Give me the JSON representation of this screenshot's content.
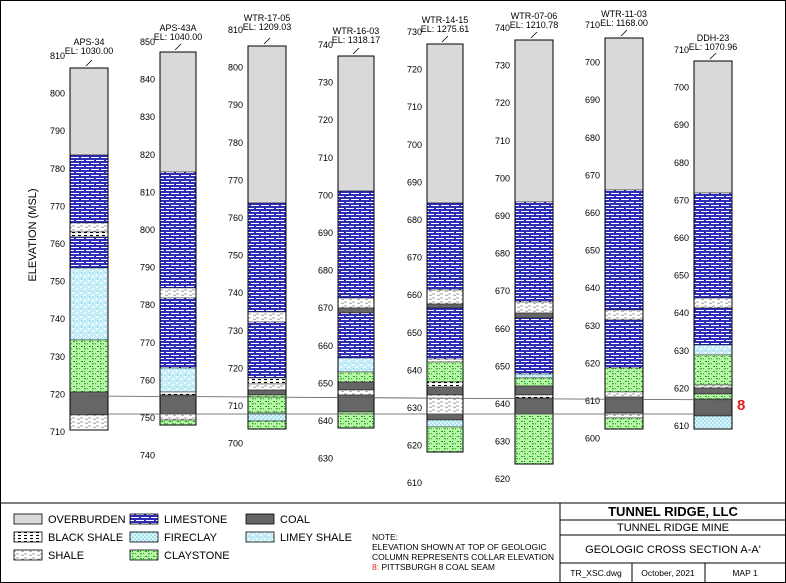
{
  "axis_label": "ELEVATION (MSL)",
  "seam_marker": "8",
  "boreholes": [
    {
      "name": "APS-34",
      "el": "EL: 1030.00",
      "ticks": [
        "810",
        "800",
        "790",
        "780",
        "770",
        "760",
        "750",
        "740",
        "730",
        "720",
        "710"
      ]
    },
    {
      "name": "APS-43A",
      "el": "EL: 1040.00",
      "ticks": [
        "850",
        "840",
        "830",
        "820",
        "810",
        "800",
        "790",
        "780",
        "770",
        "760",
        "750",
        "740"
      ]
    },
    {
      "name": "WTR-17-05",
      "el": "EL: 1209.03",
      "ticks": [
        "810",
        "800",
        "790",
        "780",
        "770",
        "760",
        "750",
        "740",
        "730",
        "720",
        "710",
        "700"
      ]
    },
    {
      "name": "WTR-16-03",
      "el": "EL: 1318.17",
      "ticks": [
        "740",
        "730",
        "720",
        "710",
        "700",
        "690",
        "680",
        "670",
        "660",
        "650",
        "640",
        "630"
      ]
    },
    {
      "name": "WTR-14-15",
      "el": "EL: 1275.61",
      "ticks": [
        "730",
        "720",
        "710",
        "700",
        "690",
        "680",
        "670",
        "660",
        "650",
        "640",
        "630",
        "620",
        "610"
      ]
    },
    {
      "name": "WTR-07-06",
      "el": "EL: 1210.78",
      "ticks": [
        "740",
        "730",
        "720",
        "710",
        "700",
        "690",
        "680",
        "670",
        "660",
        "650",
        "640",
        "630",
        "620"
      ]
    },
    {
      "name": "WTR-11-03",
      "el": "EL: 1168.00",
      "ticks": [
        "710",
        "700",
        "690",
        "680",
        "670",
        "660",
        "650",
        "640",
        "630",
        "620",
        "610",
        "600"
      ]
    },
    {
      "name": "DDH-23",
      "el": "EL: 1070.96",
      "ticks": [
        "710",
        "700",
        "690",
        "680",
        "670",
        "660",
        "650",
        "640",
        "630",
        "620",
        "610"
      ]
    }
  ],
  "legend": [
    {
      "key": "overburden",
      "label": "OVERBURDEN"
    },
    {
      "key": "blackshale",
      "label": "BLACK SHALE"
    },
    {
      "key": "shale",
      "label": "SHALE"
    },
    {
      "key": "limestone",
      "label": "LIMESTONE"
    },
    {
      "key": "fireclay",
      "label": "FIRECLAY"
    },
    {
      "key": "claystone",
      "label": "CLAYSTONE"
    },
    {
      "key": "coal",
      "label": "COAL"
    },
    {
      "key": "limeyshale",
      "label": "LIMEY SHALE"
    }
  ],
  "note": {
    "title": "NOTE:",
    "line1": "ELEVATION SHOWN AT TOP OF GEOLOGIC",
    "line2": "COLUMN REPRESENTS COLLAR ELEVATION",
    "line3_prefix": "8:",
    "line3_text": " PITTSBURGH 8 COAL SEAM"
  },
  "title_block": {
    "company": "TUNNEL RIDGE, LLC",
    "mine": "TUNNEL RIDGE MINE",
    "section": "GEOLOGIC CROSS SECTION A-A'",
    "file": "TR_XSC.dwg",
    "date": "October, 2021",
    "map": "MAP 1"
  }
}
